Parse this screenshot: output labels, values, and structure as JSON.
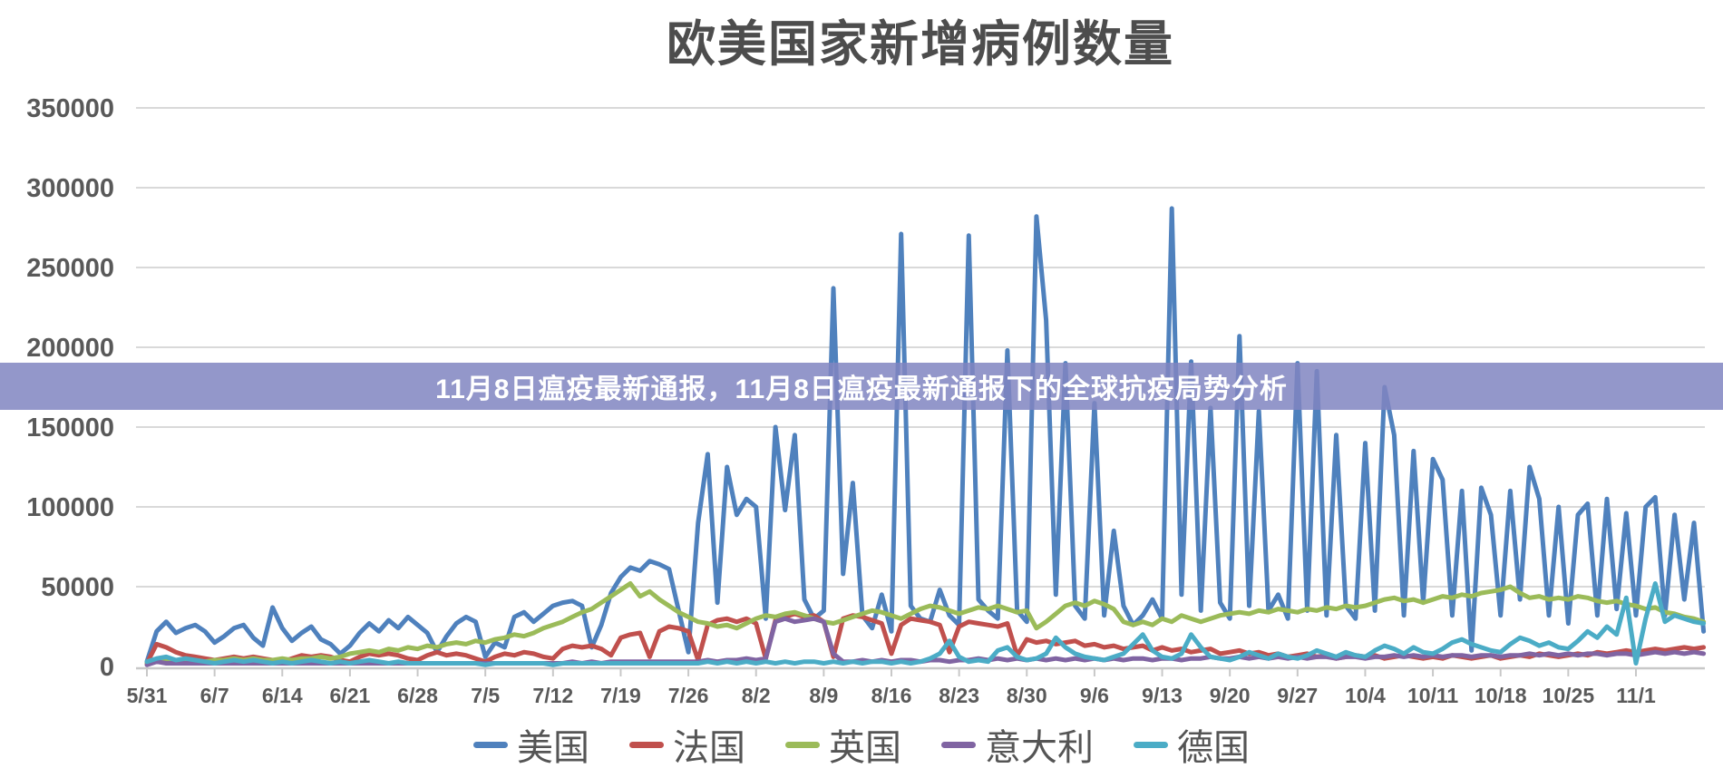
{
  "page": {
    "title": "欧美国家新增病例数量",
    "banner_text": "11月8日瘟疫最新通报，11月8日瘟疫最新通报下的全球抗疫局势分析"
  },
  "colors": {
    "banner_background": "#8085C1",
    "banner_text": "#FFFFFF",
    "axis_label": "#595959",
    "gridline": "#D9D9D9",
    "axis_line": "#C8C8C8",
    "title_text": "#4D4D4D"
  },
  "chart_data": {
    "type": "line",
    "title": "欧美国家新增病例数量",
    "xlabel": "",
    "ylabel": "",
    "ylim": [
      0,
      350000
    ],
    "grid": true,
    "legend_position": "bottom",
    "sampling": "daily from 5/31 to 11/8",
    "y_ticks": [
      0,
      50000,
      100000,
      150000,
      200000,
      250000,
      300000,
      350000
    ],
    "x_tick_labels": [
      "5/31",
      "6/7",
      "6/14",
      "6/21",
      "6/28",
      "7/5",
      "7/12",
      "7/19",
      "7/26",
      "8/2",
      "8/9",
      "8/16",
      "8/23",
      "8/30",
      "9/6",
      "9/13",
      "9/20",
      "9/27",
      "10/4",
      "10/11",
      "10/18",
      "10/25",
      "11/1"
    ],
    "series": [
      {
        "id": "usa",
        "name": "美国",
        "color": "#4F81BD",
        "values": [
          3000,
          22000,
          28000,
          21000,
          24000,
          26000,
          22000,
          15000,
          19000,
          24000,
          26000,
          18000,
          13000,
          37000,
          24000,
          16000,
          21000,
          25000,
          17000,
          14000,
          8000,
          13000,
          21000,
          27000,
          22000,
          29000,
          24000,
          31000,
          26000,
          21000,
          9000,
          19000,
          27000,
          31000,
          28000,
          6000,
          15000,
          12000,
          31000,
          34000,
          28000,
          33000,
          38000,
          40000,
          41000,
          38000,
          12000,
          26000,
          46000,
          56000,
          62000,
          60000,
          66000,
          64000,
          61000,
          35000,
          9000,
          90000,
          133000,
          40000,
          125000,
          95000,
          105000,
          100000,
          30000,
          150000,
          98000,
          145000,
          42000,
          30000,
          35000,
          237000,
          58000,
          115000,
          32000,
          24000,
          45000,
          22000,
          271000,
          38000,
          30000,
          28000,
          48000,
          32000,
          26000,
          270000,
          42000,
          35000,
          30000,
          198000,
          35000,
          28000,
          282000,
          217000,
          45000,
          190000,
          38000,
          30000,
          165000,
          32000,
          85000,
          38000,
          26000,
          32000,
          42000,
          30000,
          287000,
          45000,
          191000,
          35000,
          162000,
          40000,
          30000,
          207000,
          38000,
          160000,
          35000,
          45000,
          30000,
          190000,
          35000,
          185000,
          32000,
          145000,
          38000,
          30000,
          140000,
          35000,
          175000,
          145000,
          32000,
          135000,
          40000,
          130000,
          117000,
          32000,
          110000,
          10000,
          112000,
          95000,
          32000,
          110000,
          42000,
          125000,
          105000,
          32000,
          100000,
          27000,
          95000,
          102000,
          32000,
          105000,
          36000,
          96000,
          32000,
          100000,
          106000,
          32000,
          95000,
          42000,
          90000,
          22000
        ]
      },
      {
        "id": "france",
        "name": "法国",
        "color": "#C0504D",
        "values": [
          2000,
          14000,
          12000,
          9000,
          7000,
          6000,
          5000,
          4000,
          5000,
          6000,
          5000,
          6000,
          5000,
          4000,
          3000,
          5000,
          7000,
          6000,
          7000,
          6000,
          4000,
          3000,
          6000,
          8000,
          7000,
          8000,
          7000,
          5000,
          4000,
          7000,
          9000,
          7000,
          8000,
          7000,
          5000,
          3000,
          6000,
          8000,
          7000,
          9000,
          8000,
          6000,
          5000,
          11000,
          13000,
          12000,
          13000,
          11000,
          7000,
          18000,
          20000,
          21000,
          6000,
          22000,
          25000,
          24000,
          22000,
          4000,
          26000,
          29000,
          30000,
          28000,
          30000,
          27000,
          5000,
          29000,
          31000,
          33000,
          31000,
          32000,
          28000,
          6000,
          30000,
          32000,
          31000,
          29000,
          27000,
          8000,
          26000,
          30000,
          29000,
          28000,
          26000,
          9000,
          25000,
          28000,
          27000,
          26000,
          25000,
          27000,
          7000,
          17000,
          15000,
          16000,
          14000,
          15000,
          16000,
          13000,
          14000,
          12000,
          13000,
          11000,
          12000,
          13000,
          10000,
          12000,
          10000,
          11000,
          9000,
          10000,
          11000,
          8000,
          9000,
          10000,
          8000,
          9000,
          7000,
          8000,
          6000,
          7000,
          8000,
          6000,
          7000,
          5000,
          6000,
          7000,
          6000,
          7000,
          5000,
          6000,
          7000,
          6000,
          5000,
          6000,
          5000,
          7000,
          6000,
          5000,
          6000,
          7000,
          5000,
          6000,
          7000,
          6000,
          8000,
          7000,
          6000,
          7000,
          8000,
          7000,
          9000,
          8000,
          9000,
          10000,
          9000,
          10000,
          11000,
          10000,
          11000,
          12000,
          11000,
          12000
        ]
      },
      {
        "id": "uk",
        "name": "英国",
        "color": "#9BBB59",
        "values": [
          2000,
          4000,
          4000,
          3000,
          4000,
          4000,
          3000,
          4000,
          4000,
          5000,
          4000,
          5000,
          4000,
          4000,
          5000,
          4000,
          5000,
          5000,
          6000,
          5000,
          6000,
          8000,
          9000,
          10000,
          9000,
          11000,
          10000,
          12000,
          11000,
          13000,
          12000,
          14000,
          15000,
          14000,
          16000,
          15000,
          17000,
          18000,
          20000,
          19000,
          21000,
          24000,
          26000,
          28000,
          31000,
          34000,
          36000,
          40000,
          44000,
          48000,
          52000,
          44000,
          47000,
          42000,
          38000,
          34000,
          31000,
          28000,
          27000,
          25000,
          26000,
          24000,
          27000,
          30000,
          32000,
          31000,
          33000,
          34000,
          32000,
          30000,
          28000,
          27000,
          29000,
          31000,
          33000,
          35000,
          34000,
          32000,
          30000,
          33000,
          36000,
          38000,
          37000,
          35000,
          33000,
          35000,
          37000,
          36000,
          38000,
          36000,
          34000,
          35000,
          24000,
          28000,
          33000,
          38000,
          40000,
          38000,
          41000,
          39000,
          36000,
          28000,
          26000,
          28000,
          26000,
          30000,
          28000,
          32000,
          30000,
          28000,
          30000,
          32000,
          33000,
          34000,
          33000,
          35000,
          34000,
          36000,
          35000,
          34000,
          36000,
          35000,
          37000,
          36000,
          38000,
          37000,
          38000,
          40000,
          42000,
          43000,
          41000,
          42000,
          40000,
          42000,
          44000,
          43000,
          45000,
          44000,
          46000,
          47000,
          48000,
          50000,
          46000,
          43000,
          44000,
          42000,
          43000,
          42000,
          44000,
          43000,
          41000,
          40000,
          41000,
          39000,
          38000,
          36000,
          37000,
          34000,
          33000,
          31000,
          30000,
          28000
        ]
      },
      {
        "id": "italy",
        "name": "意大利",
        "color": "#8064A2",
        "values": [
          1000,
          3000,
          2000,
          2000,
          2000,
          2000,
          2000,
          2000,
          2000,
          2000,
          2000,
          2000,
          2000,
          2000,
          2000,
          2000,
          2000,
          2000,
          2000,
          2000,
          2000,
          2000,
          2000,
          2000,
          2000,
          2000,
          2000,
          2000,
          2000,
          2000,
          2000,
          2000,
          2000,
          2000,
          2000,
          2000,
          2000,
          2000,
          2000,
          2000,
          2000,
          2000,
          2000,
          2000,
          3000,
          2000,
          3000,
          2000,
          3000,
          3000,
          3000,
          3000,
          3000,
          3000,
          3000,
          3000,
          3000,
          3000,
          4000,
          3000,
          4000,
          4000,
          5000,
          4000,
          5000,
          28000,
          30000,
          28000,
          29000,
          30000,
          28000,
          8000,
          3000,
          3000,
          4000,
          3000,
          4000,
          3000,
          4000,
          4000,
          3000,
          4000,
          4000,
          3000,
          4000,
          4000,
          5000,
          4000,
          5000,
          4000,
          5000,
          4000,
          5000,
          4000,
          5000,
          4000,
          5000,
          4000,
          5000,
          4000,
          5000,
          4000,
          5000,
          5000,
          4000,
          5000,
          5000,
          4000,
          5000,
          5000,
          6000,
          5000,
          5000,
          6000,
          5000,
          6000,
          5000,
          6000,
          5000,
          6000,
          5000,
          6000,
          6000,
          5000,
          6000,
          6000,
          5000,
          6000,
          6000,
          7000,
          6000,
          7000,
          6000,
          7000,
          6000,
          7000,
          7000,
          6000,
          7000,
          7000,
          6000,
          7000,
          7000,
          8000,
          7000,
          8000,
          7000,
          8000,
          7000,
          8000,
          8000,
          7000,
          8000,
          8000,
          7000,
          8000,
          9000,
          8000,
          9000,
          8000,
          9000,
          8000
        ]
      },
      {
        "id": "germany",
        "name": "德国",
        "color": "#4BACC6",
        "values": [
          3000,
          5000,
          6000,
          4000,
          5000,
          4000,
          3000,
          2000,
          3000,
          4000,
          3000,
          4000,
          3000,
          2000,
          3000,
          2000,
          3000,
          4000,
          3000,
          2000,
          3000,
          2000,
          3000,
          4000,
          3000,
          2000,
          3000,
          2000,
          2000,
          2000,
          2000,
          2000,
          2000,
          2000,
          2000,
          1000,
          2000,
          2000,
          2000,
          2000,
          2000,
          2000,
          1000,
          2000,
          2000,
          2000,
          2000,
          2000,
          2000,
          2000,
          2000,
          2000,
          2000,
          2000,
          2000,
          2000,
          2000,
          2000,
          3000,
          2000,
          3000,
          2000,
          3000,
          2000,
          3000,
          2000,
          3000,
          2000,
          3000,
          3000,
          2000,
          3000,
          2000,
          3000,
          2000,
          3000,
          3000,
          2000,
          3000,
          2000,
          3000,
          5000,
          8000,
          16000,
          6000,
          3000,
          4000,
          3000,
          10000,
          12000,
          6000,
          4000,
          5000,
          8000,
          18000,
          12000,
          8000,
          6000,
          5000,
          4000,
          6000,
          8000,
          14000,
          20000,
          10000,
          6000,
          5000,
          8000,
          20000,
          12000,
          6000,
          5000,
          4000,
          6000,
          9000,
          7000,
          5000,
          8000,
          6000,
          5000,
          7000,
          10000,
          8000,
          6000,
          9000,
          7000,
          6000,
          10000,
          13000,
          11000,
          8000,
          12000,
          9000,
          8000,
          11000,
          15000,
          17000,
          14000,
          12000,
          10000,
          9000,
          14000,
          18000,
          16000,
          13000,
          15000,
          12000,
          11000,
          16000,
          22000,
          18000,
          25000,
          20000,
          43000,
          2000,
          30000,
          52000,
          28000,
          32000,
          30000,
          28000,
          27000
        ]
      }
    ]
  }
}
